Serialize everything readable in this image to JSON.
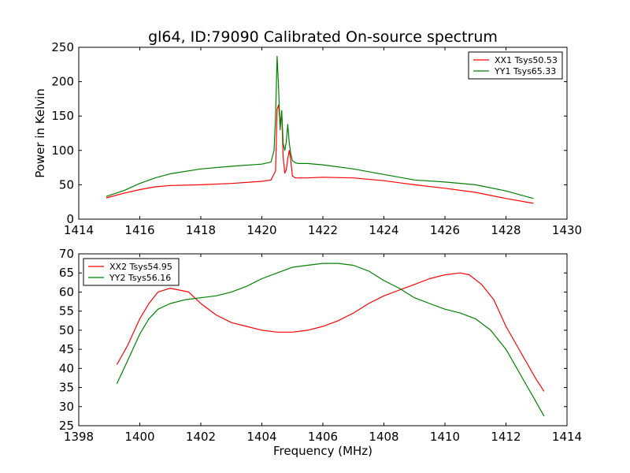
{
  "chart_data": [
    {
      "type": "line",
      "title": "gl64, ID:79090 Calibrated On-source spectrum",
      "xlabel": "",
      "ylabel": "Power in Kelvin",
      "xlim": [
        1414,
        1430
      ],
      "ylim": [
        0,
        250
      ],
      "xticks": [
        "1414",
        "1416",
        "1418",
        "1420",
        "1422",
        "1424",
        "1426",
        "1428",
        "1430"
      ],
      "yticks": [
        "0",
        "50",
        "100",
        "150",
        "200",
        "250"
      ],
      "grid": false,
      "legend_position": "top-right",
      "series": [
        {
          "name": "XX1 Tsys50.53",
          "color": "#ff0000",
          "x": [
            1414.9,
            1415.5,
            1416.0,
            1416.5,
            1417.0,
            1418.0,
            1419.0,
            1420.0,
            1420.3,
            1420.45,
            1420.5,
            1420.55,
            1420.6,
            1420.65,
            1420.7,
            1420.75,
            1420.8,
            1420.85,
            1420.9,
            1420.95,
            1421.0,
            1421.1,
            1421.2,
            1421.5,
            1422.0,
            1423.0,
            1424.0,
            1425.0,
            1426.0,
            1427.0,
            1428.0,
            1428.9
          ],
          "y": [
            31,
            38,
            43,
            47,
            49,
            50,
            52,
            55,
            57,
            70,
            160,
            166,
            137,
            155,
            90,
            67,
            72,
            88,
            100,
            85,
            63,
            60,
            60,
            60,
            61,
            60,
            56,
            50,
            45,
            39,
            30,
            23
          ]
        },
        {
          "name": "YY1 Tsys65.33",
          "color": "#008000",
          "x": [
            1414.9,
            1415.5,
            1416.0,
            1416.5,
            1417.0,
            1418.0,
            1419.0,
            1420.0,
            1420.3,
            1420.4,
            1420.45,
            1420.5,
            1420.55,
            1420.6,
            1420.65,
            1420.7,
            1420.75,
            1420.8,
            1420.85,
            1420.9,
            1420.95,
            1421.0,
            1421.1,
            1421.2,
            1421.5,
            1422.0,
            1423.0,
            1424.0,
            1425.0,
            1426.0,
            1427.0,
            1428.0,
            1428.9
          ],
          "y": [
            33,
            42,
            52,
            60,
            66,
            73,
            77,
            80,
            83,
            100,
            150,
            237,
            190,
            130,
            158,
            110,
            100,
            112,
            138,
            110,
            95,
            85,
            82,
            81,
            81,
            79,
            73,
            65,
            57,
            54,
            50,
            41,
            30
          ]
        }
      ]
    },
    {
      "type": "line",
      "title": "",
      "xlabel": "Frequency (MHz)",
      "ylabel": "",
      "xlim": [
        1398,
        1414
      ],
      "ylim": [
        25,
        70
      ],
      "xticks": [
        "1398",
        "1400",
        "1402",
        "1404",
        "1406",
        "1408",
        "1410",
        "1412",
        "1414"
      ],
      "yticks": [
        "25",
        "30",
        "35",
        "40",
        "45",
        "50",
        "55",
        "60",
        "65",
        "70"
      ],
      "grid": false,
      "legend_position": "top-left",
      "series": [
        {
          "name": "XX2 Tsys54.95",
          "color": "#ff0000",
          "x": [
            1399.25,
            1399.6,
            1400.0,
            1400.3,
            1400.6,
            1401.0,
            1401.3,
            1401.6,
            1402.0,
            1402.5,
            1403.0,
            1403.5,
            1404.0,
            1404.5,
            1405.0,
            1405.5,
            1406.0,
            1406.5,
            1407.0,
            1407.5,
            1408.0,
            1408.5,
            1409.0,
            1409.5,
            1410.0,
            1410.5,
            1410.8,
            1411.2,
            1411.6,
            1412.0,
            1412.5,
            1413.0,
            1413.25
          ],
          "y": [
            41,
            46,
            53,
            57,
            60,
            61,
            60.5,
            60,
            57,
            54,
            52,
            51,
            50,
            49.5,
            49.5,
            50,
            51,
            52.5,
            54.5,
            57,
            59,
            60.5,
            62,
            63.5,
            64.5,
            65,
            64.5,
            62,
            58,
            51,
            44,
            37,
            34
          ]
        },
        {
          "name": "YY2 Tsys56.16",
          "color": "#008000",
          "x": [
            1399.25,
            1399.6,
            1400.0,
            1400.3,
            1400.6,
            1401.0,
            1401.5,
            1402.0,
            1402.5,
            1403.0,
            1403.5,
            1404.0,
            1404.5,
            1405.0,
            1405.5,
            1406.0,
            1406.5,
            1407.0,
            1407.5,
            1408.0,
            1408.5,
            1409.0,
            1409.5,
            1410.0,
            1410.5,
            1411.0,
            1411.5,
            1412.0,
            1412.5,
            1413.0,
            1413.25
          ],
          "y": [
            36,
            42,
            49,
            53,
            55.5,
            57,
            58,
            58.5,
            59,
            60,
            61.5,
            63.5,
            65,
            66.5,
            67,
            67.5,
            67.5,
            67,
            65.5,
            63,
            61,
            58.5,
            57,
            55.5,
            54.5,
            53,
            50,
            45,
            38,
            31,
            27.5
          ]
        }
      ]
    }
  ]
}
